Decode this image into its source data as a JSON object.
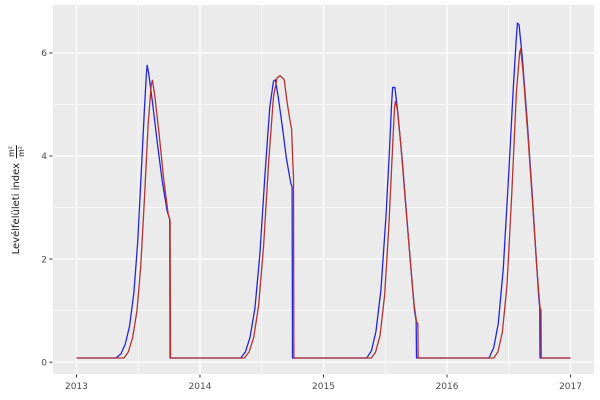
{
  "chart": {
    "y_axis_title": "Levélfelületi index",
    "y_axis_unit_numerator": "m²",
    "y_axis_unit_denominator": "m²"
  },
  "colors": {
    "panel_bg": "#ebebeb",
    "grid": "#ffffff",
    "tick_mark": "#333333",
    "tick_label": "#4d4d4d",
    "axis_title": "#1a1a1a",
    "series_blue": "#2525dc",
    "series_red": "#b53333"
  },
  "chart_data": {
    "type": "line",
    "title": "",
    "xlabel": "",
    "ylabel": "Levélfelületi index (m²/m²)",
    "xlim": [
      2012.81,
      2017.19
    ],
    "ylim": [
      -0.23,
      6.93
    ],
    "x_ticks": [
      2013,
      2014,
      2015,
      2016,
      2017
    ],
    "x_minor": [
      2013.5,
      2014.5,
      2015.5,
      2016.5
    ],
    "y_ticks": [
      0,
      2,
      4,
      6
    ],
    "y_minor": [
      1,
      3,
      5
    ],
    "grid": true,
    "legend": "none",
    "series": [
      {
        "name": "blue",
        "color": "#2525dc",
        "points": [
          [
            2013.0,
            0.08
          ],
          [
            2013.32,
            0.08
          ],
          [
            2013.36,
            0.16
          ],
          [
            2013.395,
            0.35
          ],
          [
            2013.43,
            0.7
          ],
          [
            2013.465,
            1.35
          ],
          [
            2013.495,
            2.3
          ],
          [
            2013.525,
            3.7
          ],
          [
            2013.55,
            4.9
          ],
          [
            2013.565,
            5.55
          ],
          [
            2013.572,
            5.76
          ],
          [
            2013.585,
            5.6
          ],
          [
            2013.615,
            5.05
          ],
          [
            2013.655,
            4.25
          ],
          [
            2013.695,
            3.5
          ],
          [
            2013.735,
            2.92
          ],
          [
            2013.755,
            2.78
          ],
          [
            2013.758,
            0.08
          ],
          [
            2014.33,
            0.08
          ],
          [
            2014.368,
            0.2
          ],
          [
            2014.405,
            0.48
          ],
          [
            2014.445,
            1.05
          ],
          [
            2014.485,
            2.1
          ],
          [
            2014.525,
            3.6
          ],
          [
            2014.565,
            4.95
          ],
          [
            2014.595,
            5.45
          ],
          [
            2014.61,
            5.48
          ],
          [
            2014.635,
            5.12
          ],
          [
            2014.665,
            4.6
          ],
          [
            2014.7,
            3.95
          ],
          [
            2014.735,
            3.47
          ],
          [
            2014.746,
            3.4
          ],
          [
            2014.749,
            0.08
          ],
          [
            2015.35,
            0.08
          ],
          [
            2015.388,
            0.22
          ],
          [
            2015.425,
            0.6
          ],
          [
            2015.465,
            1.4
          ],
          [
            2015.505,
            2.8
          ],
          [
            2015.535,
            4.15
          ],
          [
            2015.552,
            5.05
          ],
          [
            2015.56,
            5.33
          ],
          [
            2015.578,
            5.33
          ],
          [
            2015.6,
            4.88
          ],
          [
            2015.64,
            3.85
          ],
          [
            2015.678,
            2.7
          ],
          [
            2015.71,
            1.75
          ],
          [
            2015.737,
            1.0
          ],
          [
            2015.75,
            0.8
          ],
          [
            2015.753,
            0.08
          ],
          [
            2016.34,
            0.08
          ],
          [
            2016.378,
            0.28
          ],
          [
            2016.415,
            0.75
          ],
          [
            2016.455,
            1.8
          ],
          [
            2016.495,
            3.45
          ],
          [
            2016.535,
            5.25
          ],
          [
            2016.56,
            6.25
          ],
          [
            2016.57,
            6.58
          ],
          [
            2016.583,
            6.55
          ],
          [
            2016.61,
            5.9
          ],
          [
            2016.65,
            4.65
          ],
          [
            2016.69,
            3.25
          ],
          [
            2016.72,
            2.1
          ],
          [
            2016.743,
            1.25
          ],
          [
            2016.751,
            1.05
          ],
          [
            2016.753,
            0.08
          ],
          [
            2017.0,
            0.08
          ]
        ]
      },
      {
        "name": "red",
        "color": "#b53333",
        "points": [
          [
            2013.0,
            0.08
          ],
          [
            2013.385,
            0.08
          ],
          [
            2013.42,
            0.2
          ],
          [
            2013.455,
            0.48
          ],
          [
            2013.49,
            1.0
          ],
          [
            2013.52,
            1.85
          ],
          [
            2013.55,
            3.15
          ],
          [
            2013.58,
            4.6
          ],
          [
            2013.605,
            5.38
          ],
          [
            2013.615,
            5.47
          ],
          [
            2013.635,
            5.15
          ],
          [
            2013.668,
            4.45
          ],
          [
            2013.705,
            3.58
          ],
          [
            2013.742,
            2.88
          ],
          [
            2013.758,
            2.74
          ],
          [
            2013.762,
            0.08
          ],
          [
            2014.36,
            0.08
          ],
          [
            2014.398,
            0.2
          ],
          [
            2014.435,
            0.48
          ],
          [
            2014.475,
            1.1
          ],
          [
            2014.515,
            2.25
          ],
          [
            2014.555,
            3.85
          ],
          [
            2014.595,
            5.15
          ],
          [
            2014.625,
            5.52
          ],
          [
            2014.648,
            5.56
          ],
          [
            2014.682,
            5.48
          ],
          [
            2014.705,
            5.05
          ],
          [
            2014.728,
            4.7
          ],
          [
            2014.742,
            4.52
          ],
          [
            2014.752,
            3.85
          ],
          [
            2014.757,
            3.6
          ],
          [
            2014.76,
            0.08
          ],
          [
            2015.388,
            0.08
          ],
          [
            2015.422,
            0.2
          ],
          [
            2015.458,
            0.52
          ],
          [
            2015.495,
            1.3
          ],
          [
            2015.528,
            2.6
          ],
          [
            2015.558,
            4.1
          ],
          [
            2015.575,
            4.95
          ],
          [
            2015.582,
            5.06
          ],
          [
            2015.598,
            4.9
          ],
          [
            2015.625,
            4.25
          ],
          [
            2015.662,
            3.15
          ],
          [
            2015.7,
            2.05
          ],
          [
            2015.732,
            1.15
          ],
          [
            2015.753,
            0.78
          ],
          [
            2015.764,
            0.75
          ],
          [
            2015.766,
            0.08
          ],
          [
            2016.378,
            0.08
          ],
          [
            2016.412,
            0.2
          ],
          [
            2016.448,
            0.58
          ],
          [
            2016.486,
            1.5
          ],
          [
            2016.524,
            3.25
          ],
          [
            2016.562,
            5.25
          ],
          [
            2016.588,
            6.0
          ],
          [
            2016.596,
            6.08
          ],
          [
            2016.615,
            5.65
          ],
          [
            2016.655,
            4.4
          ],
          [
            2016.695,
            3.0
          ],
          [
            2016.728,
            1.8
          ],
          [
            2016.752,
            1.08
          ],
          [
            2016.761,
            1.0
          ],
          [
            2016.763,
            0.08
          ],
          [
            2017.0,
            0.08
          ]
        ]
      }
    ]
  }
}
